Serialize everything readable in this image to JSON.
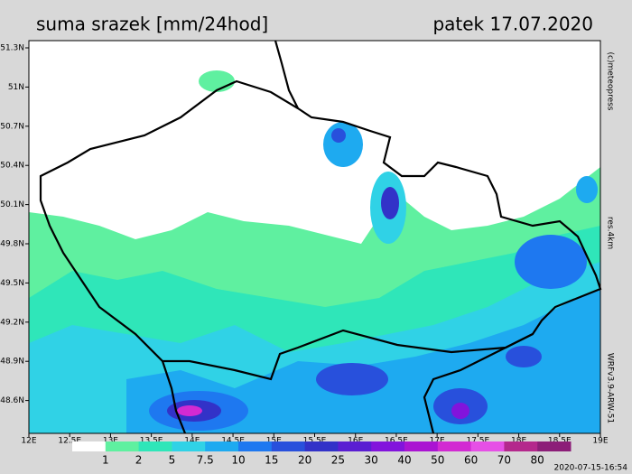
{
  "header": {
    "title": "suma srazek [mm/24hod]",
    "date": "patek 17.07.2020"
  },
  "lat_labels": [
    "51.3N",
    "51N",
    "50.7N",
    "50.4N",
    "50.1N",
    "49.8N",
    "49.5N",
    "49.2N",
    "48.9N",
    "48.6N"
  ],
  "lon_labels": [
    "12E",
    "12.5E",
    "13E",
    "13.5E",
    "14E",
    "14.5E",
    "15E",
    "15.5E",
    "16E",
    "16.5E",
    "17E",
    "17.5E",
    "18E",
    "18.5E",
    "19E"
  ],
  "side_texts": {
    "copyright": "(c)meteopress",
    "resolution": "res.4km",
    "model": "WRFv3.9-ARW-51"
  },
  "legend": {
    "levels": [
      1,
      2,
      5,
      7.5,
      10,
      15,
      20,
      25,
      30,
      40,
      50,
      60,
      70,
      80
    ],
    "colors": [
      "#ffffff",
      "#5ff0a0",
      "#2fe6b9",
      "#30d2e6",
      "#1eaaf0",
      "#1e78f0",
      "#2850dc",
      "#3232c8",
      "#5a1ed2",
      "#8214dc",
      "#aa14d2",
      "#d22ad2",
      "#e650e6",
      "#b4288c",
      "#8c1e78"
    ]
  },
  "timestamp": "2020-07-15-16:54"
}
